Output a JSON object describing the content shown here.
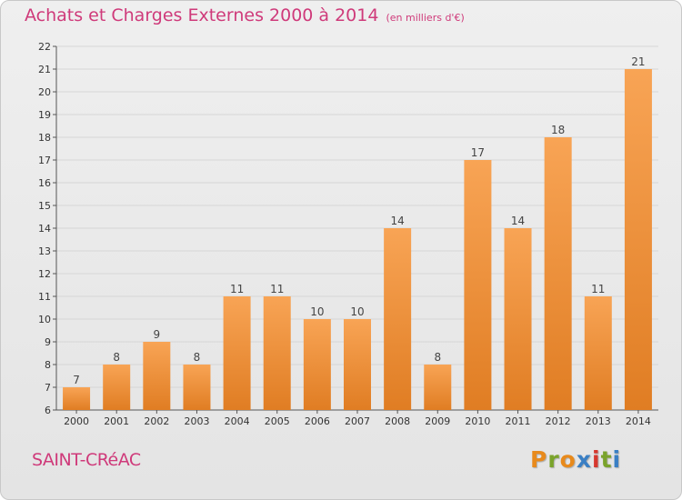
{
  "chart_title": "Achats et Charges Externes 2000 à 2014",
  "chart_unit": "(en milliers d'€)",
  "commune": "SAINT-CRéAC",
  "brand": "Proxiti",
  "colors": {
    "bar_light": "#f8a455",
    "bar_dark": "#e07d23",
    "title": "#cf3a7a",
    "grid": "#d6d6d6",
    "brand_letters": [
      "#e88a1c",
      "#7aa32b",
      "#e88a1c",
      "#3a7fc4",
      "#d6382e",
      "#7aa32b",
      "#3a7fc4"
    ]
  },
  "chart_data": {
    "type": "bar",
    "title": "Achats et Charges Externes 2000 à 2014",
    "subtitle": "(en milliers d'€)",
    "categories": [
      "2000",
      "2001",
      "2002",
      "2003",
      "2004",
      "2005",
      "2006",
      "2007",
      "2008",
      "2009",
      "2010",
      "2011",
      "2012",
      "2013",
      "2014"
    ],
    "values": [
      7,
      8,
      9,
      8,
      11,
      11,
      10,
      10,
      14,
      8,
      17,
      14,
      18,
      11,
      21
    ],
    "ylim": [
      6,
      22
    ],
    "yticks": [
      6,
      7,
      8,
      9,
      10,
      11,
      12,
      13,
      14,
      15,
      16,
      17,
      18,
      19,
      20,
      21,
      22
    ],
    "data_labels": true,
    "grid": true,
    "xlabel": "",
    "ylabel": ""
  }
}
